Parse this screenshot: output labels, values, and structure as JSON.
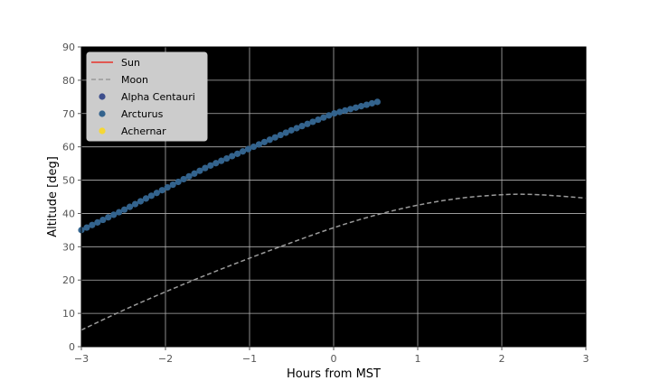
{
  "chart_data": {
    "type": "line",
    "xlabel": "Hours from MST",
    "ylabel": "Altitude [deg]",
    "xlim": [
      -3,
      3
    ],
    "ylim": [
      0,
      90
    ],
    "x_ticks": [
      -3,
      -2,
      -1,
      0,
      1,
      2,
      3
    ],
    "x_tick_labels": [
      "−3",
      "−2",
      "−1",
      "0",
      "1",
      "2",
      "3"
    ],
    "y_ticks": [
      0,
      10,
      20,
      30,
      40,
      50,
      60,
      70,
      80,
      90
    ],
    "y_tick_labels": [
      "0",
      "10",
      "20",
      "30",
      "40",
      "50",
      "60",
      "70",
      "80",
      "90"
    ],
    "grid": true,
    "background": "#000000",
    "legend_position": "upper-left",
    "legend": [
      {
        "label": "Sun",
        "style": "line",
        "color": "#e8312a"
      },
      {
        "label": "Moon",
        "style": "dashed",
        "color": "#9a9a9a"
      },
      {
        "label": "Alpha Centauri",
        "style": "marker",
        "color": "#3d4e8c"
      },
      {
        "label": "Arcturus",
        "style": "marker",
        "color": "#33638d"
      },
      {
        "label": "Achernar",
        "style": "marker",
        "color": "#f5d735"
      }
    ],
    "series": [
      {
        "name": "Moon",
        "style": "dashed",
        "color": "#9a9a9a",
        "x": [
          -3.0,
          -2.5,
          -2.0,
          -1.5,
          -1.0,
          -0.5,
          0.0,
          0.5,
          1.0,
          1.5,
          2.0,
          2.25,
          2.5,
          3.0
        ],
        "y": [
          5.0,
          11.0,
          16.5,
          21.7,
          26.6,
          31.3,
          35.8,
          39.6,
          42.6,
          44.7,
          45.7,
          45.8,
          45.6,
          44.6
        ]
      },
      {
        "name": "Arcturus",
        "style": "marker",
        "color": "#33638d",
        "x_start": -3.0,
        "x_end": 0.52,
        "y_start": 35.0,
        "y_end": 73.5,
        "points": 56,
        "curve": [
          [
            -3.0,
            35.0
          ],
          [
            -2.5,
            41.0
          ],
          [
            -2.0,
            47.5
          ],
          [
            -1.5,
            54.0
          ],
          [
            -1.0,
            59.5
          ],
          [
            -0.5,
            65.0
          ],
          [
            0.0,
            70.0
          ],
          [
            0.52,
            73.5
          ]
        ]
      }
    ]
  }
}
